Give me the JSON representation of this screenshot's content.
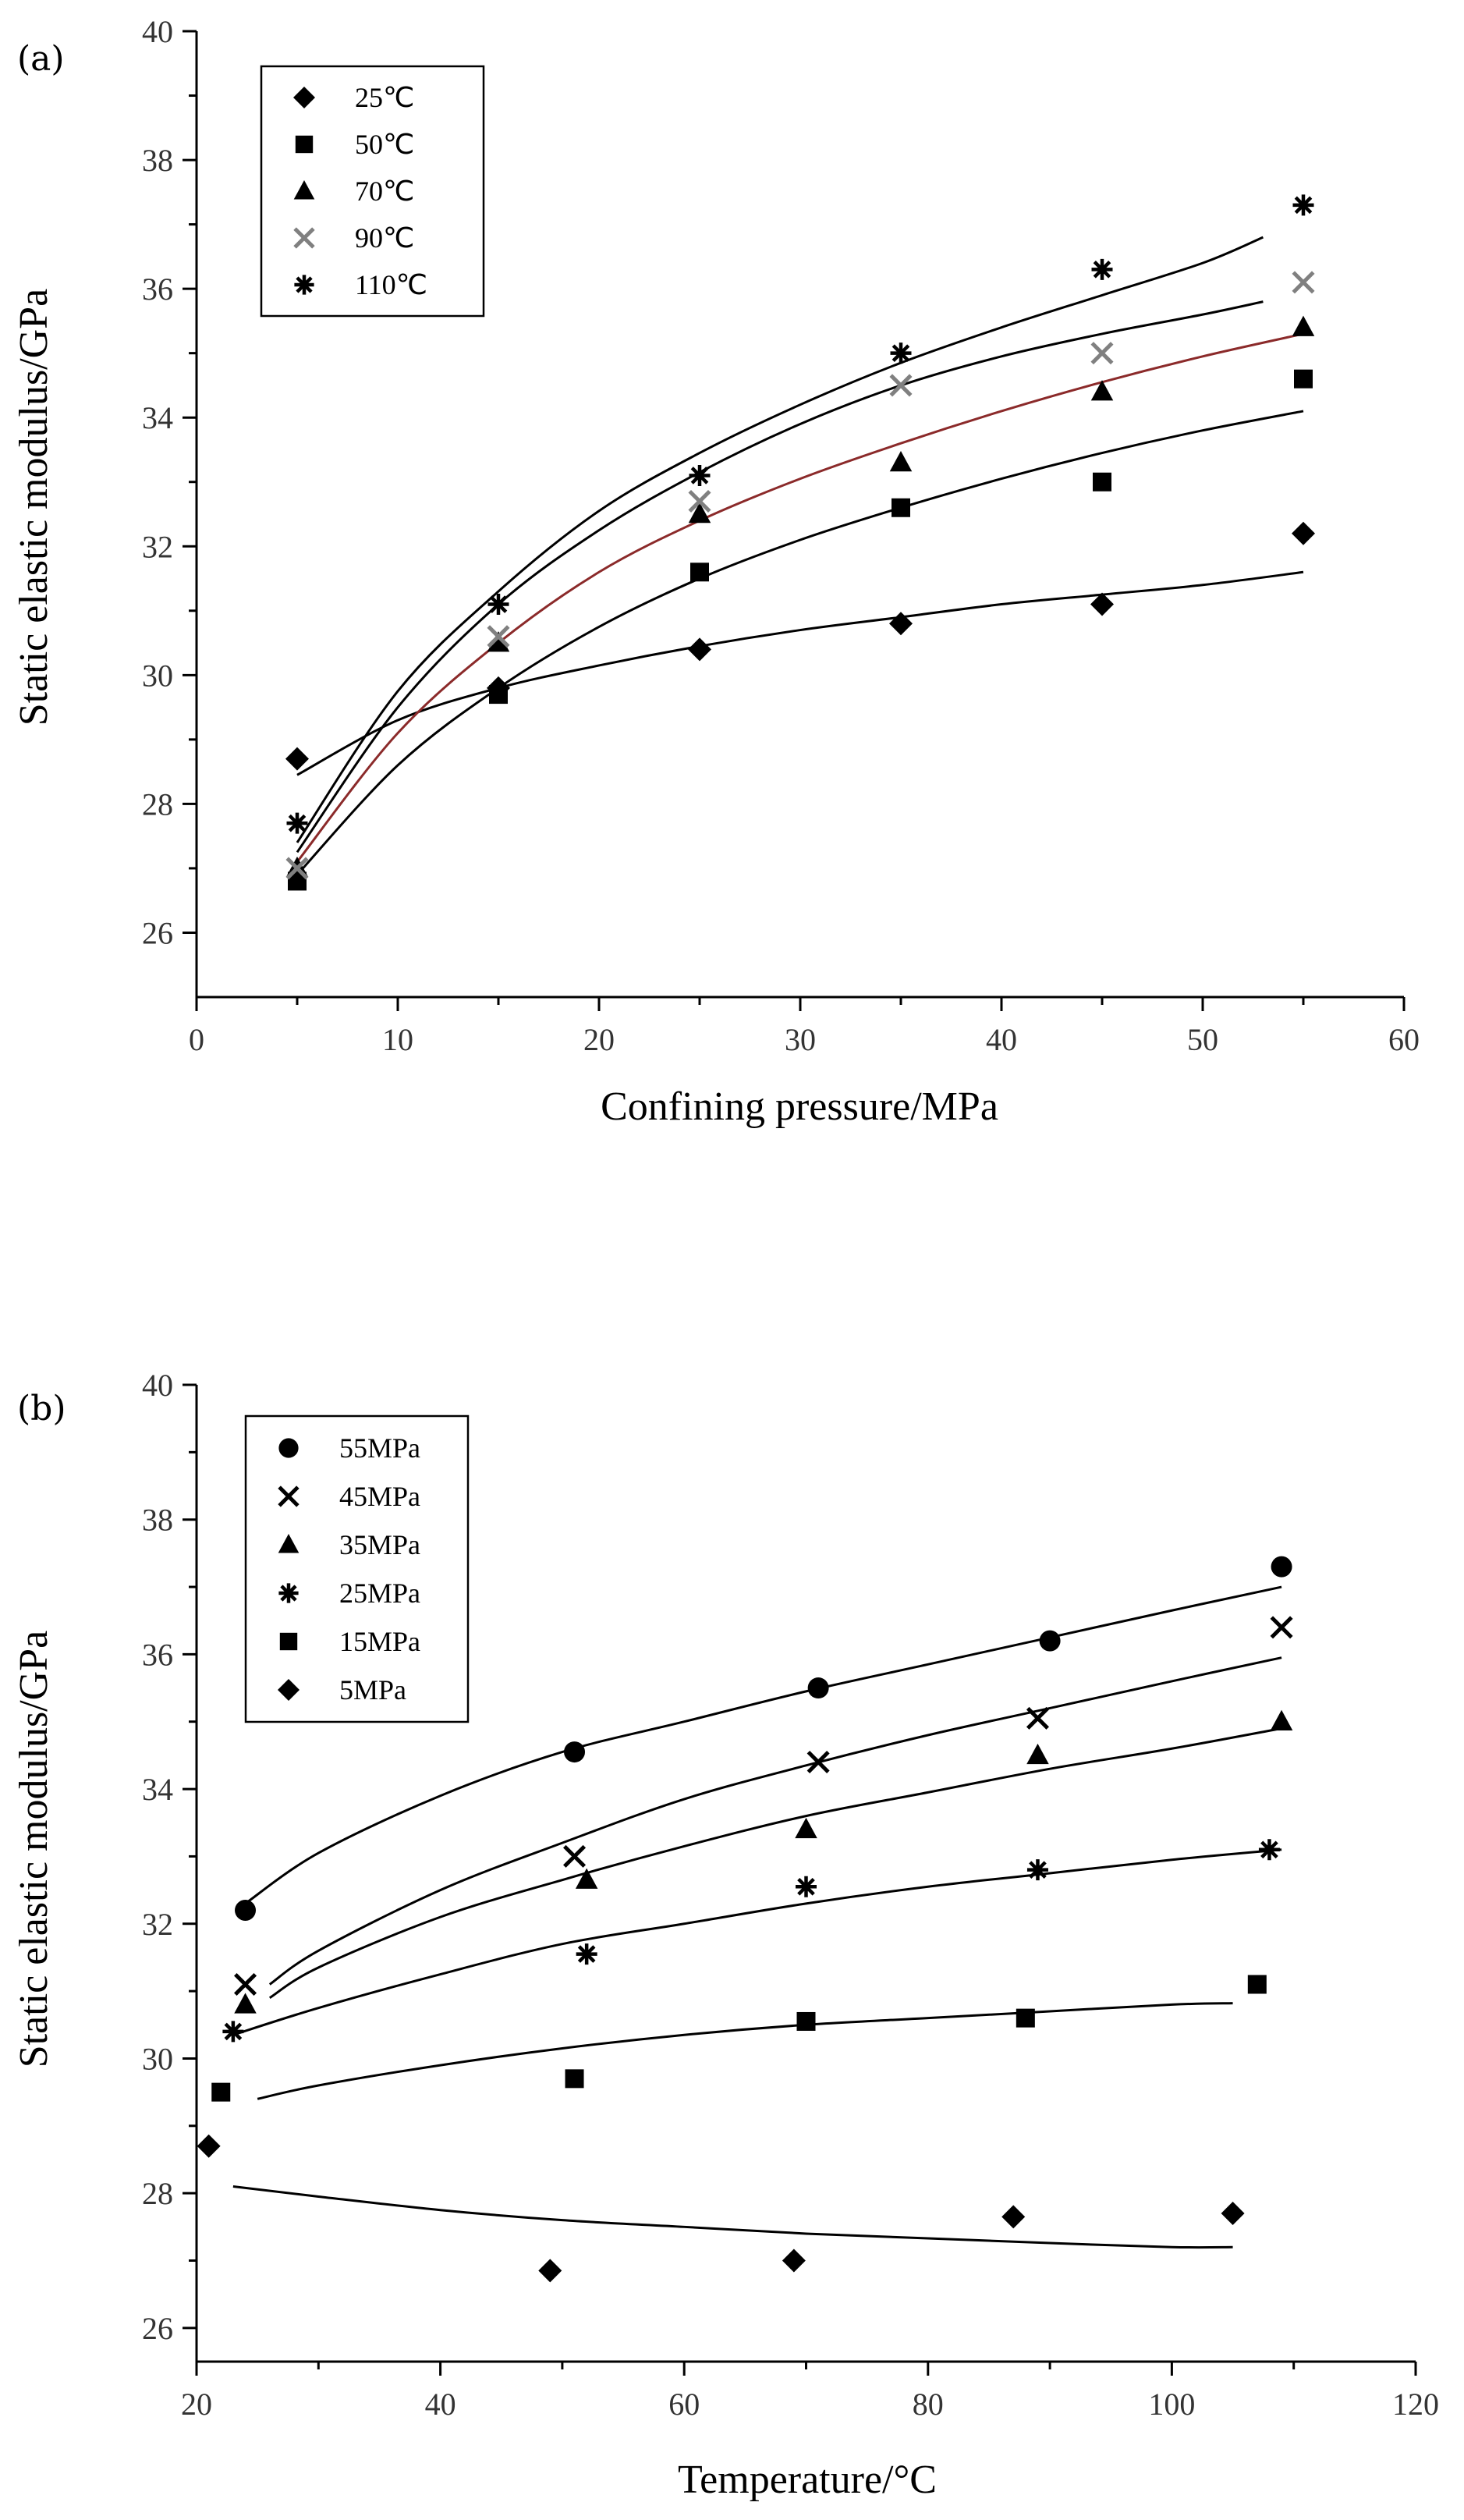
{
  "chart_data": [
    {
      "type": "scatter",
      "panel_label": "(a)",
      "xlabel": "Confining pressure/MPa",
      "ylabel": "Static elastic modulus/GPa",
      "xlim": [
        0,
        60
      ],
      "ylim": [
        25,
        40
      ],
      "xticks": [
        0,
        10,
        20,
        30,
        40,
        50,
        60
      ],
      "yticks": [
        26,
        28,
        30,
        32,
        34,
        36,
        38,
        40
      ],
      "legend_position": "top-left",
      "series": [
        {
          "name": "25℃",
          "marker": "diamond",
          "color": "#000000",
          "x": [
            5,
            15,
            25,
            35,
            45,
            55
          ],
          "y": [
            28.7,
            29.8,
            30.4,
            30.8,
            31.1,
            32.2
          ],
          "fit": {
            "x": [
              5,
              10,
              15,
              20,
              25,
              30,
              35,
              40,
              45,
              50,
              55
            ],
            "y": [
              28.45,
              29.3,
              29.8,
              30.15,
              30.45,
              30.7,
              30.9,
              31.1,
              31.25,
              31.4,
              31.6
            ]
          }
        },
        {
          "name": "50℃",
          "marker": "square",
          "color": "#000000",
          "x": [
            5,
            15,
            25,
            35,
            45,
            55
          ],
          "y": [
            26.8,
            29.7,
            31.6,
            32.6,
            33.0,
            34.6
          ],
          "fit": {
            "x": [
              5,
              10,
              15,
              20,
              25,
              30,
              35,
              40,
              45,
              50,
              55
            ],
            "y": [
              26.9,
              28.6,
              29.8,
              30.75,
              31.5,
              32.1,
              32.6,
              33.05,
              33.45,
              33.8,
              34.1
            ]
          }
        },
        {
          "name": "70℃",
          "marker": "triangle",
          "color": "#000000",
          "x": [
            5,
            15,
            25,
            35,
            45,
            55
          ],
          "y": [
            27.0,
            30.5,
            32.5,
            33.3,
            34.4,
            35.4
          ],
          "fit": {
            "x": [
              5,
              10,
              15,
              20,
              25,
              30,
              35,
              40,
              45,
              50,
              55
            ],
            "y": [
              27.1,
              29.1,
              30.5,
              31.6,
              32.4,
              33.05,
              33.6,
              34.1,
              34.55,
              34.95,
              35.3
            ]
          }
        },
        {
          "name": "90℃",
          "marker": "x",
          "color": "#808080",
          "x": [
            5,
            15,
            25,
            35,
            45,
            55
          ],
          "y": [
            27.0,
            30.6,
            32.7,
            34.5,
            35.0,
            36.1
          ],
          "fit": {
            "x": [
              5,
              10,
              15,
              20,
              25,
              30,
              35,
              40,
              45,
              50,
              53
            ],
            "y": [
              27.25,
              29.5,
              31.1,
              32.25,
              33.15,
              33.9,
              34.5,
              34.95,
              35.3,
              35.6,
              35.8
            ]
          }
        },
        {
          "name": "110℃",
          "marker": "asterisk",
          "color": "#000000",
          "x": [
            5,
            15,
            25,
            35,
            45,
            55
          ],
          "y": [
            27.7,
            31.1,
            33.1,
            35.0,
            36.3,
            37.3
          ],
          "fit": {
            "x": [
              5,
              10,
              15,
              20,
              25,
              30,
              35,
              40,
              45,
              50,
              53
            ],
            "y": [
              27.4,
              29.75,
              31.3,
              32.55,
              33.45,
              34.2,
              34.85,
              35.4,
              35.9,
              36.4,
              36.8
            ]
          }
        }
      ]
    },
    {
      "type": "scatter",
      "panel_label": "(b)",
      "xlabel": "Temperature/°C",
      "ylabel": "Static elastic modulus/GPa",
      "xlim": [
        20,
        120
      ],
      "ylim": [
        25.5,
        40
      ],
      "xticks": [
        20,
        40,
        60,
        80,
        100,
        120
      ],
      "yticks": [
        26,
        28,
        30,
        32,
        34,
        36,
        38,
        40
      ],
      "legend_position": "top-left",
      "series": [
        {
          "name": "55MPa",
          "marker": "circle",
          "color": "#000000",
          "x": [
            24,
            51,
            71,
            90,
            109
          ],
          "y": [
            32.2,
            34.55,
            35.5,
            36.2,
            37.3
          ],
          "fit": {
            "x": [
              24,
              30,
              40,
              50,
              60,
              70,
              80,
              90,
              100,
              109
            ],
            "y": [
              32.3,
              33.05,
              33.9,
              34.55,
              35.0,
              35.45,
              35.85,
              36.25,
              36.65,
              37.0
            ]
          }
        },
        {
          "name": "45MPa",
          "marker": "x",
          "color": "#000000",
          "x": [
            24,
            51,
            71,
            89,
            109
          ],
          "y": [
            31.1,
            33.0,
            34.4,
            35.05,
            36.4
          ],
          "fit": {
            "x": [
              26,
              30,
              40,
              50,
              60,
              70,
              80,
              90,
              100,
              109
            ],
            "y": [
              31.1,
              31.6,
              32.5,
              33.2,
              33.85,
              34.35,
              34.8,
              35.2,
              35.6,
              35.95
            ]
          }
        },
        {
          "name": "35MPa",
          "marker": "triangle",
          "color": "#000000",
          "x": [
            24,
            52,
            70,
            89,
            109
          ],
          "y": [
            30.8,
            32.65,
            33.4,
            34.5,
            35.0
          ],
          "fit": {
            "x": [
              26,
              30,
              40,
              50,
              60,
              70,
              80,
              90,
              100,
              109
            ],
            "y": [
              30.9,
              31.35,
              32.1,
              32.65,
              33.15,
              33.6,
              33.95,
              34.3,
              34.6,
              34.9
            ]
          }
        },
        {
          "name": "25MPa",
          "marker": "asterisk",
          "color": "#000000",
          "x": [
            23,
            52,
            70,
            89,
            108
          ],
          "y": [
            30.4,
            31.55,
            32.55,
            32.8,
            33.1
          ],
          "fit": {
            "x": [
              23,
              30,
              40,
              50,
              60,
              70,
              80,
              90,
              100,
              109
            ],
            "y": [
              30.35,
              30.75,
              31.25,
              31.7,
              32.0,
              32.3,
              32.55,
              32.75,
              32.95,
              33.1
            ]
          }
        },
        {
          "name": "15MPa",
          "marker": "square",
          "color": "#000000",
          "x": [
            22,
            51,
            70,
            88,
            107
          ],
          "y": [
            29.5,
            29.7,
            30.55,
            30.6,
            31.1
          ],
          "fit": {
            "x": [
              25,
              30,
              40,
              50,
              60,
              70,
              80,
              90,
              100,
              105
            ],
            "y": [
              29.4,
              29.6,
              29.9,
              30.15,
              30.35,
              30.5,
              30.6,
              30.7,
              30.8,
              30.82
            ]
          }
        },
        {
          "name": "5MPa",
          "marker": "diamond",
          "color": "#000000",
          "x": [
            21,
            49,
            69,
            87,
            105
          ],
          "y": [
            28.7,
            26.85,
            27.0,
            27.65,
            27.7
          ],
          "fit": {
            "x": [
              23,
              30,
              40,
              50,
              60,
              70,
              80,
              90,
              100,
              105
            ],
            "y": [
              28.1,
              27.95,
              27.75,
              27.6,
              27.5,
              27.4,
              27.33,
              27.26,
              27.2,
              27.2
            ]
          }
        }
      ]
    }
  ]
}
